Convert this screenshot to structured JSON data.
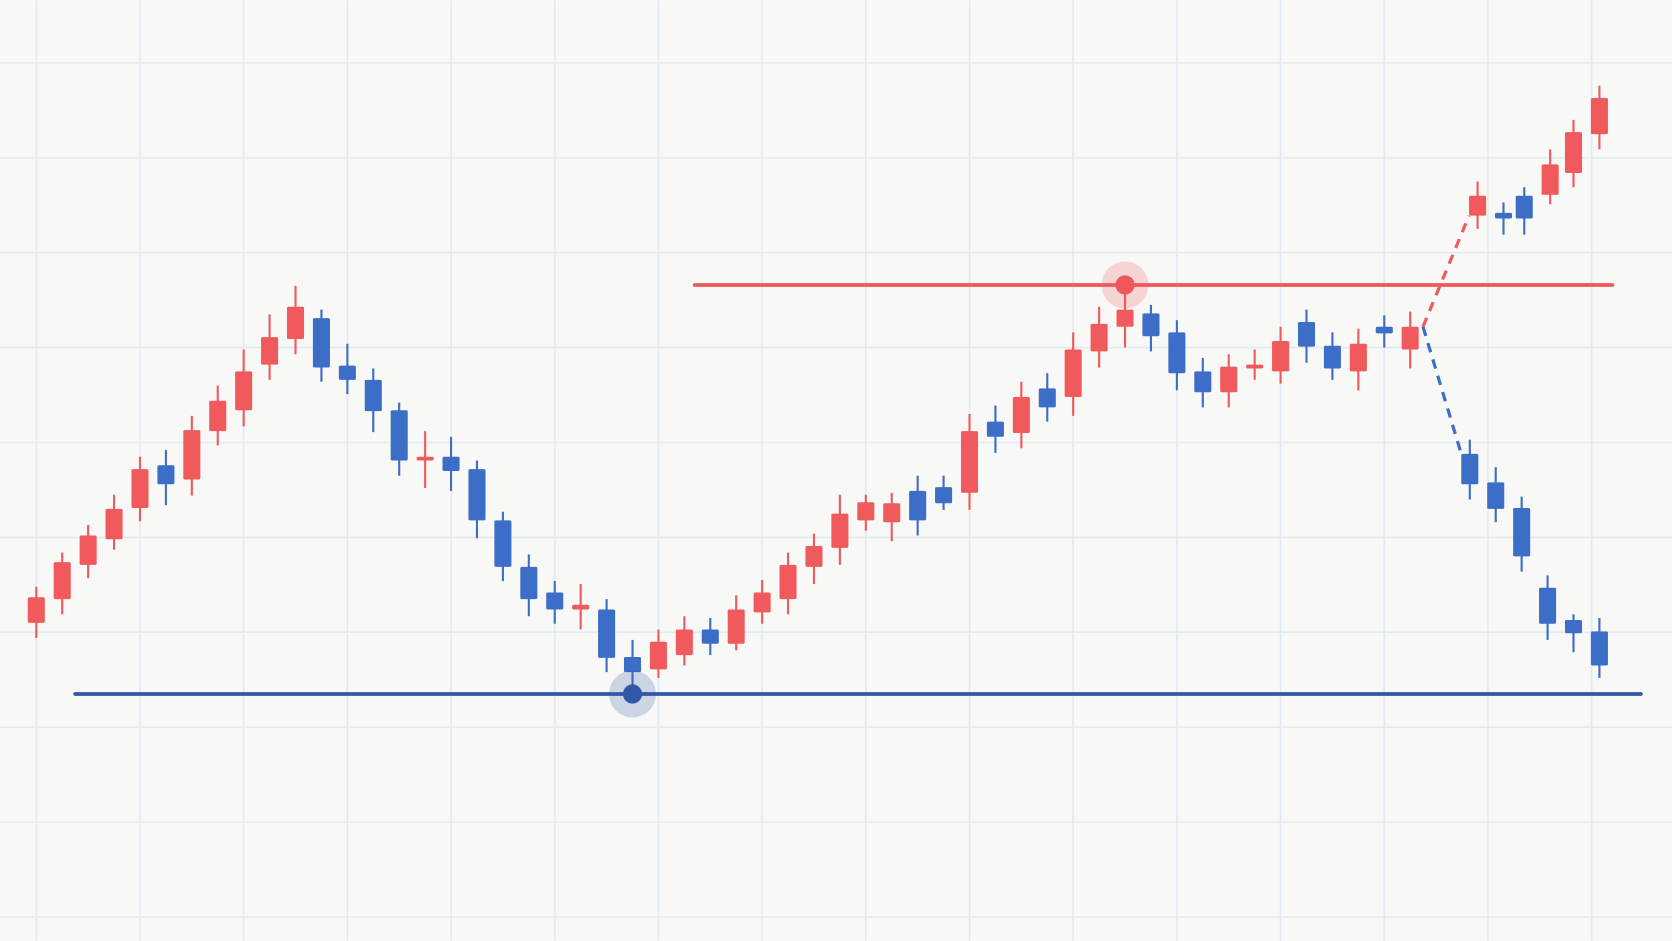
{
  "chart_data": {
    "type": "candlestick",
    "xlim": [
      -1.4,
      63.1
    ],
    "ylim": [
      -2.5,
      96.6
    ],
    "xticks": [
      0,
      4,
      8,
      12,
      16,
      20,
      24,
      28,
      32,
      36,
      40,
      44,
      48,
      52,
      56,
      60
    ],
    "yticks": [
      0,
      10,
      20,
      30,
      40,
      50,
      60,
      70,
      80,
      90
    ],
    "grid": true,
    "up_color": "#f05a5c",
    "down_color": "#3d6ec7",
    "series": [
      {
        "x": [
          0,
          1,
          2,
          3,
          4,
          5,
          6,
          7,
          8,
          9,
          10,
          11,
          12,
          13,
          14,
          15,
          16,
          17,
          18,
          19,
          20,
          21,
          22,
          23,
          24,
          25,
          26,
          27,
          28,
          29,
          30,
          31,
          32,
          33,
          34,
          35,
          36,
          37,
          38,
          39,
          40,
          41,
          42,
          43,
          44,
          45,
          46,
          47,
          48,
          49,
          50,
          51,
          52,
          53
        ],
        "open": [
          31.0,
          33.5,
          37.1,
          39.8,
          43.1,
          47.6,
          46.1,
          51.2,
          53.4,
          58.2,
          60.9,
          63.1,
          58.1,
          56.6,
          53.4,
          48.1,
          48.5,
          47.2,
          41.8,
          36.9,
          34.2,
          32.4,
          32.4,
          27.4,
          26.1,
          27.6,
          30.3,
          28.8,
          32.1,
          33.5,
          36.9,
          38.9,
          41.8,
          41.6,
          44.9,
          45.3,
          44.7,
          52.2,
          51.0,
          55.7,
          54.8,
          59.6,
          62.2,
          63.6,
          61.6,
          57.5,
          55.3,
          57.8,
          57.5,
          62.7,
          60.2,
          57.5,
          62.2,
          59.8
        ],
        "high": [
          34.8,
          38.4,
          41.3,
          44.5,
          48.5,
          49.2,
          52.8,
          56.0,
          59.8,
          63.5,
          66.5,
          64.0,
          60.4,
          57.8,
          54.2,
          51.2,
          50.6,
          48.1,
          42.7,
          38.2,
          35.4,
          35.1,
          33.5,
          29.2,
          30.3,
          31.7,
          31.5,
          33.9,
          35.5,
          38.4,
          40.4,
          44.5,
          44.5,
          44.7,
          46.5,
          46.5,
          53.0,
          53.9,
          56.4,
          57.3,
          61.6,
          64.3,
          66.5,
          64.5,
          62.9,
          58.9,
          59.3,
          59.8,
          62.2,
          64.0,
          61.6,
          62.0,
          63.4,
          63.8
        ],
        "low": [
          29.4,
          31.9,
          35.7,
          38.7,
          41.7,
          43.4,
          44.4,
          49.7,
          51.7,
          56.6,
          59.3,
          56.4,
          55.1,
          51.1,
          46.5,
          45.2,
          44.9,
          39.9,
          35.4,
          31.7,
          30.9,
          30.3,
          25.8,
          23.4,
          25.2,
          26.5,
          27.6,
          28.1,
          30.9,
          31.9,
          35.1,
          37.1,
          40.7,
          39.6,
          40.2,
          42.9,
          42.9,
          48.9,
          49.4,
          52.2,
          52.8,
          57.9,
          60.0,
          59.6,
          55.5,
          53.7,
          53.7,
          56.6,
          56.2,
          58.4,
          56.6,
          55.5,
          60.0,
          57.8
        ],
        "close": [
          33.7,
          37.4,
          40.2,
          43.0,
          47.2,
          45.6,
          51.3,
          54.4,
          57.5,
          61.1,
          64.3,
          57.9,
          56.6,
          53.3,
          48.1,
          48.5,
          47.0,
          41.8,
          36.9,
          33.5,
          32.4,
          32.9,
          27.3,
          25.8,
          29.0,
          30.3,
          28.8,
          32.4,
          34.2,
          37.1,
          39.1,
          42.5,
          43.7,
          43.6,
          41.8,
          43.6,
          51.2,
          50.6,
          54.8,
          53.7,
          59.8,
          62.5,
          64.0,
          61.2,
          57.3,
          55.3,
          58.0,
          58.2,
          60.7,
          60.1,
          57.8,
          60.4,
          61.5,
          62.2
        ]
      },
      {
        "x": [
          55.6,
          56.6,
          57.4,
          58.4,
          59.3,
          60.3
        ],
        "open": [
          73.9,
          74.2,
          76.0,
          76.1,
          78.4,
          82.5
        ],
        "high": [
          77.5,
          75.3,
          76.9,
          80.9,
          84.0,
          87.6
        ],
        "low": [
          72.5,
          71.9,
          71.9,
          75.1,
          76.9,
          80.9
        ],
        "close": [
          76.0,
          73.6,
          73.6,
          79.3,
          82.7,
          86.3
        ]
      },
      {
        "x": [
          55.3,
          56.3,
          57.3,
          58.3,
          59.3,
          60.3
        ],
        "open": [
          48.8,
          45.8,
          43.1,
          34.7,
          31.3,
          30.1
        ],
        "high": [
          50.3,
          47.4,
          44.3,
          36.0,
          31.9,
          31.5
        ],
        "low": [
          44.0,
          41.6,
          36.4,
          29.2,
          27.9,
          25.2
        ],
        "close": [
          45.6,
          43.0,
          38.0,
          30.9,
          29.9,
          26.5
        ]
      }
    ],
    "levels": [
      {
        "value": 66.6,
        "x": 42,
        "color": "#f0575a"
      },
      {
        "value": 23.5,
        "x": 23,
        "color": "#2f58a6"
      }
    ]
  }
}
